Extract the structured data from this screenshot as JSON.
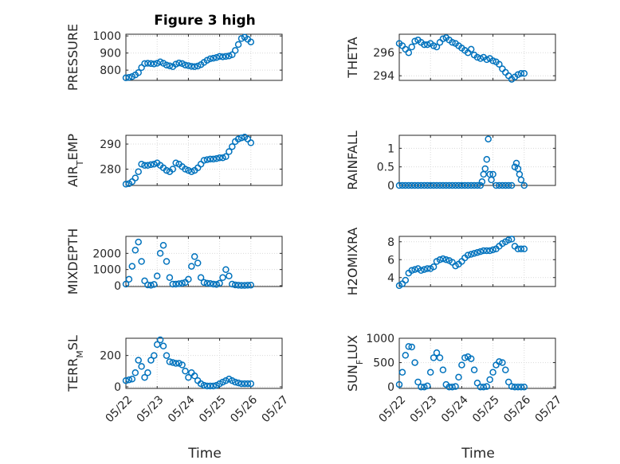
{
  "figure": {
    "title": "Figure 3 high",
    "xlabel": "Time",
    "x_ticklabels": [
      "05/22",
      "05/23",
      "05/24",
      "05/25",
      "05/26",
      "05/27"
    ],
    "marker_color": "#0072bd"
  },
  "chart_data": [
    {
      "type": "scatter",
      "ylabel": "PRESSURE",
      "ylim": [
        740,
        1010
      ],
      "yticks": [
        800,
        900,
        1000
      ],
      "xlim": [
        0,
        5
      ],
      "grid": true,
      "x": [
        0,
        0.1,
        0.2,
        0.3,
        0.4,
        0.5,
        0.6,
        0.7,
        0.8,
        0.9,
        1.0,
        1.1,
        1.2,
        1.3,
        1.4,
        1.5,
        1.6,
        1.7,
        1.8,
        1.9,
        2.0,
        2.1,
        2.2,
        2.3,
        2.4,
        2.5,
        2.6,
        2.7,
        2.8,
        2.9,
        3.0,
        3.1,
        3.2,
        3.3,
        3.4,
        3.5,
        3.6,
        3.7,
        3.8,
        3.9,
        4.0
      ],
      "y": [
        755,
        757,
        762,
        772,
        785,
        815,
        838,
        840,
        838,
        836,
        840,
        848,
        840,
        830,
        825,
        820,
        835,
        842,
        838,
        830,
        826,
        822,
        820,
        824,
        832,
        845,
        858,
        866,
        870,
        874,
        880,
        878,
        880,
        883,
        890,
        915,
        950,
        985,
        993,
        980,
        965
      ]
    },
    {
      "type": "scatter",
      "ylabel": "THETA",
      "ylim": [
        293.6,
        297.6
      ],
      "yticks": [
        294,
        296
      ],
      "xlim": [
        0,
        5
      ],
      "grid": true,
      "x": [
        0,
        0.1,
        0.2,
        0.3,
        0.4,
        0.5,
        0.6,
        0.7,
        0.8,
        0.9,
        1.0,
        1.1,
        1.2,
        1.3,
        1.4,
        1.5,
        1.6,
        1.7,
        1.8,
        1.9,
        2.0,
        2.1,
        2.2,
        2.3,
        2.4,
        2.5,
        2.6,
        2.7,
        2.8,
        2.9,
        3.0,
        3.1,
        3.2,
        3.3,
        3.4,
        3.5,
        3.6,
        3.7,
        3.8,
        3.9,
        4.0
      ],
      "y": [
        296.8,
        296.6,
        296.3,
        296.0,
        296.5,
        297.0,
        297.1,
        296.9,
        296.7,
        296.7,
        296.8,
        296.6,
        296.5,
        296.9,
        297.2,
        297.3,
        297.1,
        296.9,
        296.8,
        296.6,
        296.4,
        296.2,
        296.0,
        296.3,
        295.8,
        295.6,
        295.5,
        295.6,
        295.4,
        295.5,
        295.3,
        295.2,
        295.0,
        294.6,
        294.3,
        294.0,
        293.7,
        293.9,
        294.1,
        294.2,
        294.2
      ]
    },
    {
      "type": "scatter",
      "ylabel": "AIR_TEMP",
      "ylim": [
        273.5,
        293.5
      ],
      "yticks": [
        280,
        290
      ],
      "xlim": [
        0,
        5
      ],
      "grid": true,
      "x": [
        0,
        0.1,
        0.2,
        0.3,
        0.4,
        0.5,
        0.6,
        0.7,
        0.8,
        0.9,
        1.0,
        1.1,
        1.2,
        1.3,
        1.4,
        1.5,
        1.6,
        1.7,
        1.8,
        1.9,
        2.0,
        2.1,
        2.2,
        2.3,
        2.4,
        2.5,
        2.6,
        2.7,
        2.8,
        2.9,
        3.0,
        3.1,
        3.2,
        3.3,
        3.4,
        3.5,
        3.6,
        3.7,
        3.8,
        3.9,
        4.0
      ],
      "y": [
        274,
        274.2,
        275,
        276.5,
        279,
        282,
        281.5,
        281.5,
        281.8,
        282,
        282.5,
        281.5,
        280.5,
        279.5,
        279,
        280,
        282.5,
        282,
        281,
        280,
        279.5,
        279,
        279.5,
        280.5,
        282,
        283.5,
        283.8,
        284,
        284,
        284.2,
        284.5,
        284.5,
        285,
        287,
        289,
        291,
        292,
        292.5,
        292.8,
        292,
        290.5
      ]
    },
    {
      "type": "scatter",
      "ylabel": "RAINFALL",
      "ylim": [
        0,
        1.35
      ],
      "yticks": [
        0,
        0.5,
        1
      ],
      "xlim": [
        0,
        5
      ],
      "grid": true,
      "x": [
        0,
        0.1,
        0.2,
        0.3,
        0.4,
        0.5,
        0.6,
        0.7,
        0.8,
        0.9,
        1.0,
        1.1,
        1.2,
        1.3,
        1.4,
        1.5,
        1.6,
        1.7,
        1.8,
        1.9,
        2.0,
        2.1,
        2.2,
        2.3,
        2.4,
        2.5,
        2.6,
        2.65,
        2.7,
        2.75,
        2.8,
        2.85,
        2.9,
        2.95,
        3.0,
        3.1,
        3.2,
        3.3,
        3.4,
        3.5,
        3.6,
        3.7,
        3.75,
        3.8,
        3.85,
        3.9,
        4.0
      ],
      "y": [
        0,
        0,
        0,
        0,
        0,
        0,
        0,
        0,
        0,
        0,
        0,
        0,
        0,
        0,
        0,
        0,
        0,
        0,
        0,
        0,
        0,
        0,
        0,
        0,
        0,
        0,
        0,
        0.1,
        0.3,
        0.45,
        0.7,
        1.25,
        0.3,
        0.15,
        0.3,
        0,
        0,
        0,
        0,
        0,
        0,
        0.5,
        0.6,
        0.45,
        0.3,
        0.15,
        0
      ]
    },
    {
      "type": "scatter",
      "ylabel": "MIXDEPTH",
      "ylim": [
        -50,
        3050
      ],
      "yticks": [
        0,
        1000,
        2000
      ],
      "xlim": [
        0,
        5
      ],
      "grid": true,
      "x": [
        0,
        0.1,
        0.2,
        0.3,
        0.4,
        0.5,
        0.6,
        0.7,
        0.8,
        0.9,
        1.0,
        1.1,
        1.2,
        1.3,
        1.4,
        1.5,
        1.6,
        1.7,
        1.8,
        1.9,
        2.0,
        2.1,
        2.2,
        2.3,
        2.4,
        2.5,
        2.6,
        2.7,
        2.8,
        2.9,
        3.0,
        3.1,
        3.2,
        3.3,
        3.4,
        3.5,
        3.6,
        3.7,
        3.8,
        3.9,
        4.0
      ],
      "y": [
        100,
        400,
        1200,
        2200,
        2700,
        1500,
        300,
        50,
        30,
        80,
        600,
        2000,
        2500,
        1500,
        500,
        100,
        100,
        120,
        150,
        200,
        400,
        1200,
        1800,
        1400,
        500,
        200,
        150,
        130,
        100,
        80,
        150,
        500,
        1000,
        600,
        100,
        50,
        30,
        20,
        20,
        30,
        40
      ]
    },
    {
      "type": "scatter",
      "ylabel": "H2OMIXRA",
      "ylim": [
        3,
        8.6
      ],
      "yticks": [
        4,
        6,
        8
      ],
      "xlim": [
        0,
        5
      ],
      "grid": true,
      "x": [
        0,
        0.1,
        0.2,
        0.3,
        0.4,
        0.5,
        0.6,
        0.7,
        0.8,
        0.9,
        1.0,
        1.1,
        1.2,
        1.3,
        1.4,
        1.5,
        1.6,
        1.7,
        1.8,
        1.9,
        2.0,
        2.1,
        2.2,
        2.3,
        2.4,
        2.5,
        2.6,
        2.7,
        2.8,
        2.9,
        3.0,
        3.1,
        3.2,
        3.3,
        3.4,
        3.5,
        3.6,
        3.7,
        3.8,
        3.9,
        4.0
      ],
      "y": [
        3.1,
        3.3,
        3.7,
        4.5,
        4.8,
        4.9,
        5.0,
        4.8,
        4.9,
        5.0,
        5.0,
        5.2,
        5.8,
        6.0,
        6.1,
        6.0,
        5.9,
        5.7,
        5.3,
        5.5,
        5.8,
        6.2,
        6.5,
        6.6,
        6.7,
        6.8,
        6.9,
        7.0,
        7.0,
        7.0,
        7.1,
        7.2,
        7.5,
        7.8,
        8.0,
        8.2,
        8.3,
        7.5,
        7.2,
        7.2,
        7.2
      ]
    },
    {
      "type": "scatter",
      "ylabel": "TERR_MSL",
      "ylim": [
        -10,
        310
      ],
      "yticks": [
        0,
        200
      ],
      "xlim": [
        0,
        5
      ],
      "grid": true,
      "x": [
        0,
        0.1,
        0.2,
        0.3,
        0.4,
        0.5,
        0.6,
        0.7,
        0.8,
        0.9,
        1.0,
        1.1,
        1.2,
        1.3,
        1.4,
        1.5,
        1.6,
        1.7,
        1.8,
        1.9,
        2.0,
        2.1,
        2.2,
        2.3,
        2.4,
        2.5,
        2.6,
        2.7,
        2.8,
        2.9,
        3.0,
        3.1,
        3.2,
        3.3,
        3.4,
        3.5,
        3.6,
        3.7,
        3.8,
        3.9,
        4.0
      ],
      "y": [
        40,
        45,
        50,
        90,
        170,
        130,
        60,
        90,
        170,
        200,
        270,
        300,
        260,
        200,
        160,
        155,
        150,
        150,
        140,
        100,
        60,
        90,
        70,
        40,
        20,
        10,
        5,
        5,
        5,
        10,
        20,
        30,
        40,
        50,
        40,
        30,
        25,
        20,
        20,
        20,
        20
      ]
    },
    {
      "type": "scatter",
      "ylabel": "SUN_FLUX",
      "ylim": [
        -30,
        1000
      ],
      "yticks": [
        0,
        500,
        1000
      ],
      "xlim": [
        0,
        5
      ],
      "grid": true,
      "x": [
        0,
        0.1,
        0.2,
        0.3,
        0.4,
        0.5,
        0.6,
        0.7,
        0.8,
        0.9,
        1.0,
        1.1,
        1.2,
        1.3,
        1.4,
        1.5,
        1.6,
        1.7,
        1.8,
        1.9,
        2.0,
        2.1,
        2.2,
        2.3,
        2.4,
        2.5,
        2.6,
        2.7,
        2.8,
        2.9,
        3.0,
        3.1,
        3.2,
        3.3,
        3.4,
        3.5,
        3.6,
        3.7,
        3.8,
        3.9,
        4.0
      ],
      "y": [
        50,
        300,
        650,
        830,
        820,
        500,
        100,
        0,
        0,
        20,
        300,
        600,
        700,
        600,
        350,
        50,
        0,
        0,
        10,
        200,
        450,
        600,
        620,
        580,
        350,
        80,
        0,
        0,
        10,
        150,
        300,
        450,
        520,
        500,
        350,
        100,
        10,
        0,
        0,
        0,
        0
      ]
    }
  ]
}
